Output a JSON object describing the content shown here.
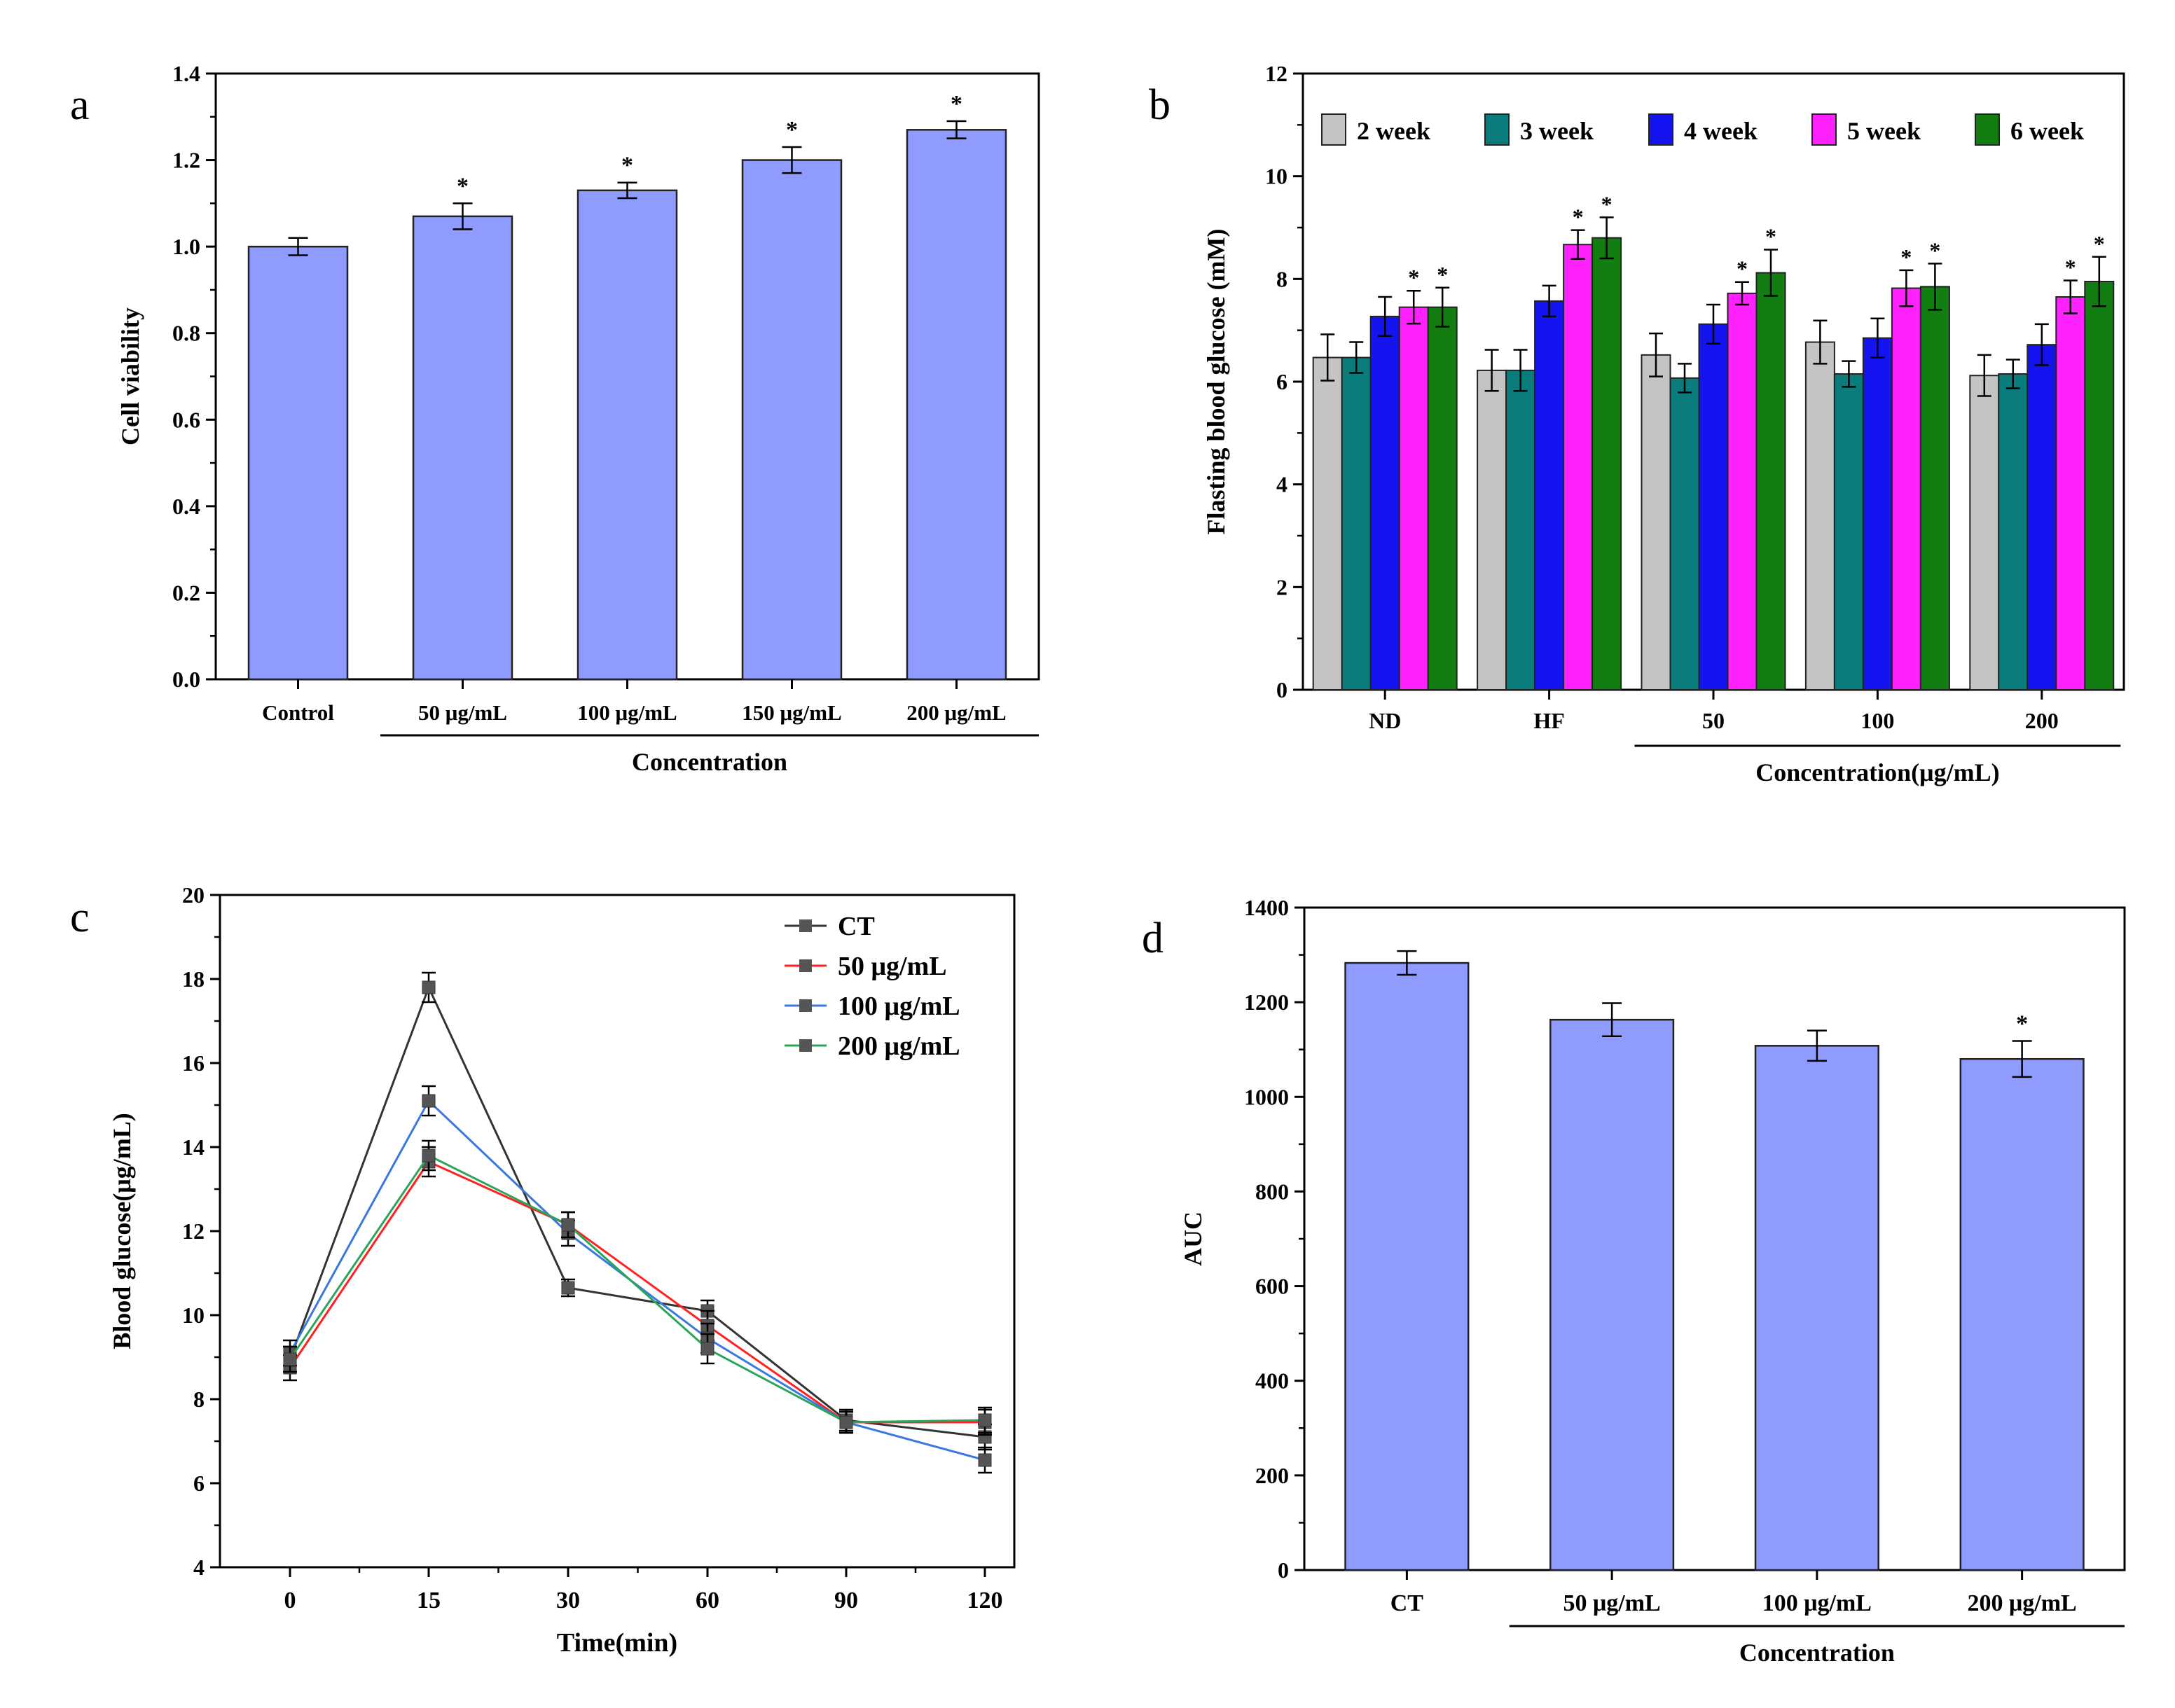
{
  "panel_letters": [
    "a",
    "b",
    "c",
    "d"
  ],
  "chart_data": [
    {
      "type": "bar",
      "panel": "a",
      "categories": [
        "Control",
        "50 μg/mL",
        "100 μg/mL",
        "150 μg/mL",
        "200 μg/mL"
      ],
      "values": [
        1.0,
        1.07,
        1.13,
        1.2,
        1.27
      ],
      "errors": [
        0.02,
        0.03,
        0.018,
        0.03,
        0.02
      ],
      "significance": [
        "",
        "*",
        "*",
        "*",
        "*"
      ],
      "xlabel": "Concentration",
      "ylabel": "Cell viability",
      "ylim": [
        0.0,
        1.4
      ],
      "yticks": [
        "0.0",
        "0.2",
        "0.4",
        "0.6",
        "0.8",
        "1.0",
        "1.2",
        "1.4"
      ],
      "bar_color": "#8f9bff",
      "group_underline": [
        "50 μg/mL",
        "200 μg/mL"
      ]
    },
    {
      "type": "bar",
      "panel": "b",
      "categories": [
        "ND",
        "HF",
        "50",
        "100",
        "200"
      ],
      "series": [
        {
          "name": "2 week",
          "color": "#c4c4c4",
          "values": [
            6.47,
            6.22,
            6.52,
            6.77,
            6.12
          ],
          "errors": [
            0.45,
            0.4,
            0.42,
            0.42,
            0.4
          ],
          "sig": [
            "",
            "",
            "",
            "",
            ""
          ]
        },
        {
          "name": "3 week",
          "color": "#0b7c7c",
          "values": [
            6.47,
            6.22,
            6.07,
            6.15,
            6.15
          ],
          "errors": [
            0.3,
            0.4,
            0.28,
            0.25,
            0.28
          ],
          "sig": [
            "",
            "",
            "",
            "",
            ""
          ]
        },
        {
          "name": "4 week",
          "color": "#1414f0",
          "values": [
            7.27,
            7.57,
            7.12,
            6.85,
            6.72
          ],
          "errors": [
            0.38,
            0.3,
            0.38,
            0.38,
            0.4
          ],
          "sig": [
            "",
            "",
            "",
            "",
            ""
          ]
        },
        {
          "name": "5 week",
          "color": "#ff22ff",
          "values": [
            7.45,
            8.67,
            7.72,
            7.82,
            7.65
          ],
          "errors": [
            0.32,
            0.28,
            0.22,
            0.35,
            0.32
          ],
          "sig": [
            "*",
            "*",
            "*",
            "*",
            "*"
          ]
        },
        {
          "name": "6 week",
          "color": "#127e12",
          "values": [
            7.45,
            8.8,
            8.12,
            7.85,
            7.95
          ],
          "errors": [
            0.38,
            0.4,
            0.45,
            0.45,
            0.48
          ],
          "sig": [
            "*",
            "*",
            "*",
            "*",
            "*"
          ]
        }
      ],
      "xlabel": "Concentration(μg/mL)",
      "ylabel": "Flasting blood glucose (mM)",
      "ylim": [
        0,
        12
      ],
      "yticks": [
        "0",
        "2",
        "4",
        "6",
        "8",
        "10",
        "12"
      ],
      "legend_position": "top",
      "group_underline": [
        "50",
        "200"
      ]
    },
    {
      "type": "line",
      "panel": "c",
      "x": [
        0,
        15,
        30,
        60,
        90,
        120
      ],
      "xticks": [
        "0",
        "15",
        "30",
        "60",
        "90",
        "120"
      ],
      "series": [
        {
          "name": "CT",
          "color": "#333333",
          "values": [
            8.95,
            17.8,
            10.65,
            10.1,
            7.5,
            7.1
          ],
          "errors": [
            0.3,
            0.35,
            0.2,
            0.25,
            0.25,
            0.3
          ]
        },
        {
          "name": "50 μg/mL",
          "color": "#ff2020",
          "values": [
            8.75,
            13.65,
            12.15,
            9.75,
            7.45,
            7.45
          ],
          "errors": [
            0.3,
            0.35,
            0.3,
            0.35,
            0.25,
            0.3
          ]
        },
        {
          "name": "100 μg/mL",
          "color": "#3a78e0",
          "values": [
            9.1,
            15.1,
            11.95,
            9.45,
            7.45,
            6.55
          ],
          "errors": [
            0.3,
            0.35,
            0.3,
            0.35,
            0.25,
            0.3
          ]
        },
        {
          "name": "200 μg/mL",
          "color": "#2aa55a",
          "values": [
            8.95,
            13.8,
            12.15,
            9.2,
            7.45,
            7.5
          ],
          "errors": [
            0.3,
            0.35,
            0.3,
            0.35,
            0.25,
            0.3
          ]
        }
      ],
      "xlabel": "Time(min)",
      "ylabel": "Blood glucose(μg/mL)",
      "ylim": [
        4,
        20
      ],
      "yticks": [
        "4",
        "6",
        "8",
        "10",
        "12",
        "14",
        "16",
        "18",
        "20"
      ],
      "legend_position": "top-right"
    },
    {
      "type": "bar",
      "panel": "d",
      "categories": [
        "CT",
        "50 μg/mL",
        "100 μg/mL",
        "200 μg/mL"
      ],
      "values": [
        1283,
        1163,
        1108,
        1080
      ],
      "errors": [
        25,
        35,
        32,
        38
      ],
      "significance": [
        "",
        "",
        "",
        "*"
      ],
      "xlabel": "Concentration",
      "ylabel": "AUC",
      "ylim": [
        0,
        1400
      ],
      "yticks": [
        "0",
        "200",
        "400",
        "600",
        "800",
        "1000",
        "1200",
        "1400"
      ],
      "bar_color": "#8f9bff",
      "group_underline": [
        "50 μg/mL",
        "200 μg/mL"
      ]
    }
  ]
}
